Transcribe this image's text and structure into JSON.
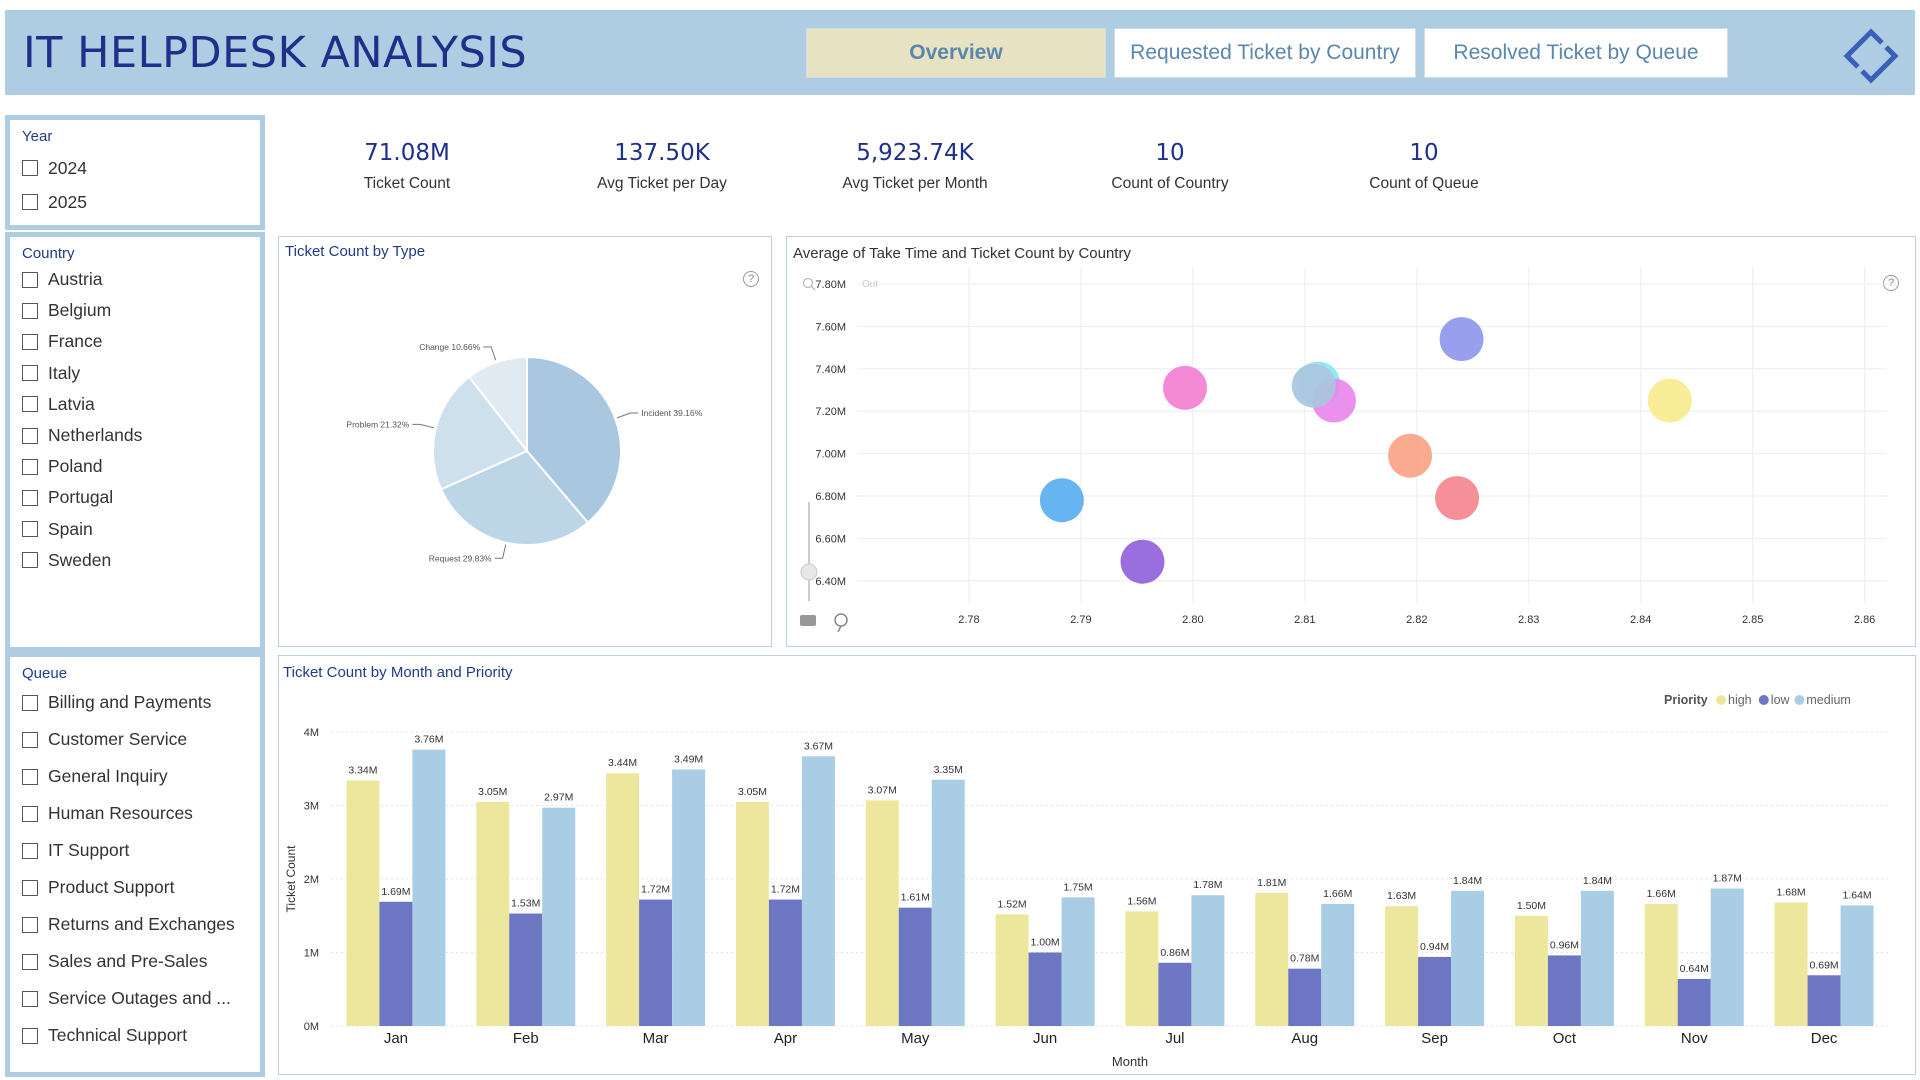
{
  "header": {
    "title": "IT HELPDESK ANALYSIS",
    "tabs": [
      "Overview",
      "Requested Ticket by Country",
      "Resolved Ticket by Queue"
    ],
    "active_tab": "Overview"
  },
  "filters": {
    "year": {
      "title": "Year",
      "items": [
        "2024",
        "2025"
      ]
    },
    "country": {
      "title": "Country",
      "items": [
        "Austria",
        "Belgium",
        "France",
        "Italy",
        "Latvia",
        "Netherlands",
        "Poland",
        "Portugal",
        "Spain",
        "Sweden"
      ]
    },
    "queue": {
      "title": "Queue",
      "items": [
        "Billing and Payments",
        "Customer Service",
        "General Inquiry",
        "Human Resources",
        "IT Support",
        "Product Support",
        "Returns and Exchanges",
        "Sales and Pre-Sales",
        "Service Outages and ...",
        "Technical Support"
      ]
    }
  },
  "kpis": [
    {
      "value": "71.08M",
      "label": "Ticket Count"
    },
    {
      "value": "137.50K",
      "label": "Avg Ticket per Day"
    },
    {
      "value": "5,923.74K",
      "label": "Avg Ticket per Month"
    },
    {
      "value": "10",
      "label": "Count of Country"
    },
    {
      "value": "10",
      "label": "Count of Queue"
    }
  ],
  "pie": {
    "title": "Ticket Count by Type",
    "help": "?",
    "chart_data": {
      "type": "pie",
      "slices": [
        {
          "label": "Incident 39.16%",
          "value": 39.16,
          "color": "#a9c8df"
        },
        {
          "label": "Request 29.83%",
          "value": 29.83,
          "color": "#bcd5e7"
        },
        {
          "label": "Problem 21.32%",
          "value": 21.32,
          "color": "#cfe0ed"
        },
        {
          "label": "Change 10.66%",
          "value": 10.66,
          "color": "#dfeaf3"
        }
      ]
    }
  },
  "scatter": {
    "title": "Average of Take Time and Ticket Count by Country",
    "help": "?",
    "zoom_hint": "Out",
    "chart_data": {
      "type": "scatter",
      "xlim": [
        2.77,
        2.862
      ],
      "ylim": [
        6.3,
        7.88
      ],
      "x_ticks": [
        "2.78",
        "2.79",
        "2.80",
        "2.81",
        "2.82",
        "2.83",
        "2.84",
        "2.85",
        "2.86"
      ],
      "x_tick_values": [
        2.78,
        2.79,
        2.8,
        2.81,
        2.82,
        2.83,
        2.84,
        2.85,
        2.86
      ],
      "y_ticks": [
        "7.80M",
        "7.60M",
        "7.40M",
        "7.20M",
        "7.00M",
        "6.80M",
        "6.60M",
        "6.40M"
      ],
      "y_tick_values": [
        7.8,
        7.6,
        7.4,
        7.2,
        7.0,
        6.8,
        6.6,
        6.4
      ],
      "points": [
        {
          "x": 2.7883,
          "y": 6.78,
          "color": "#5aafef"
        },
        {
          "x": 2.7955,
          "y": 6.49,
          "color": "#9262dc"
        },
        {
          "x": 2.7993,
          "y": 7.31,
          "color": "#f380d2"
        },
        {
          "x": 2.8112,
          "y": 7.33,
          "color": "#8ce5f2"
        },
        {
          "x": 2.8126,
          "y": 7.25,
          "color": "#e788ec"
        },
        {
          "x": 2.8108,
          "y": 7.32,
          "color": "#a9c7dd"
        },
        {
          "x": 2.8194,
          "y": 6.99,
          "color": "#f8a386"
        },
        {
          "x": 2.8236,
          "y": 6.79,
          "color": "#f4878f"
        },
        {
          "x": 2.824,
          "y": 7.54,
          "color": "#8f98eb"
        },
        {
          "x": 2.8426,
          "y": 7.25,
          "color": "#f7ea8d"
        }
      ]
    }
  },
  "bar": {
    "title": "Ticket Count by Month and Priority",
    "legend_title": "Priority",
    "chart_data": {
      "type": "bar",
      "xlabel": "Month",
      "ylabel": "Ticket Count",
      "ylim": [
        0,
        4
      ],
      "y_ticks": [
        "0M",
        "1M",
        "2M",
        "3M",
        "4M"
      ],
      "categories": [
        "Jan",
        "Feb",
        "Mar",
        "Apr",
        "May",
        "Jun",
        "Jul",
        "Aug",
        "Sep",
        "Oct",
        "Nov",
        "Dec"
      ],
      "series": [
        {
          "name": "high",
          "color": "#ede79d",
          "values": [
            3.34,
            3.05,
            3.44,
            3.05,
            3.07,
            1.52,
            1.56,
            1.81,
            1.63,
            1.5,
            1.66,
            1.68
          ],
          "labels": [
            "3.34M",
            "3.05M",
            "3.44M",
            "3.05M",
            "3.07M",
            "1.52M",
            "1.56M",
            "1.81M",
            "1.63M",
            "1.50M",
            "1.66M",
            "1.68M"
          ]
        },
        {
          "name": "low",
          "color": "#6c76c2",
          "values": [
            1.69,
            1.53,
            1.72,
            1.72,
            1.61,
            1.0,
            0.86,
            0.78,
            0.94,
            0.96,
            0.64,
            0.69
          ],
          "labels": [
            "1.69M",
            "1.53M",
            "1.72M",
            "1.72M",
            "1.61M",
            "1.00M",
            "0.86M",
            "0.78M",
            "0.94M",
            "0.96M",
            "0.64M",
            "0.69M"
          ]
        },
        {
          "name": "medium",
          "color": "#a9cde4",
          "values": [
            3.76,
            2.97,
            3.49,
            3.67,
            3.35,
            1.75,
            1.78,
            1.66,
            1.84,
            1.84,
            1.87,
            1.64
          ],
          "labels": [
            "3.76M",
            "2.97M",
            "3.49M",
            "3.67M",
            "3.35M",
            "1.75M",
            "1.78M",
            "1.66M",
            "1.84M",
            "1.84M",
            "1.87M",
            "1.64M"
          ]
        }
      ]
    }
  }
}
